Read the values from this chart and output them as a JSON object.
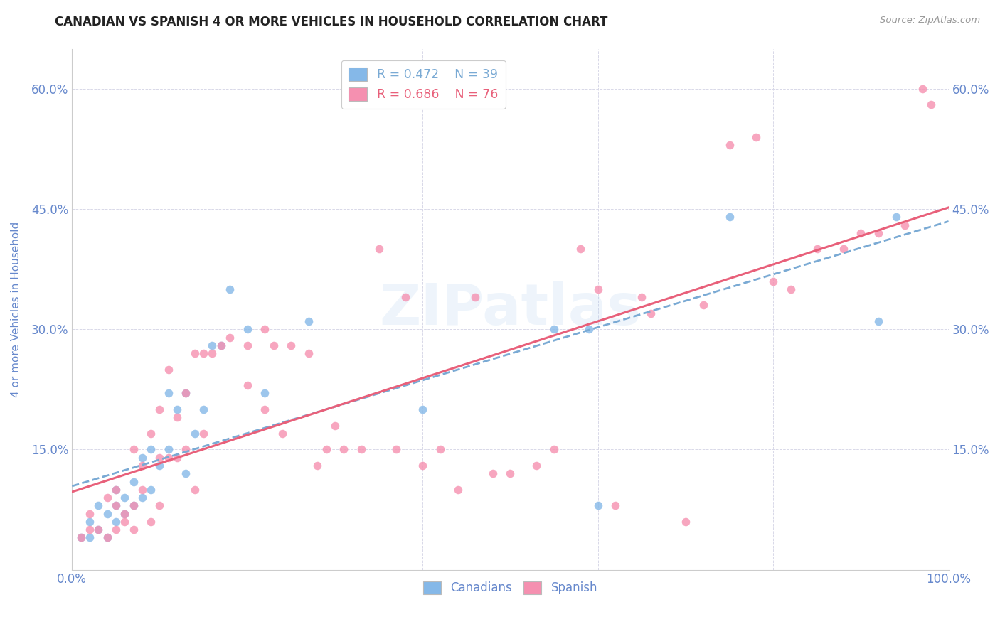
{
  "title": "CANADIAN VS SPANISH 4 OR MORE VEHICLES IN HOUSEHOLD CORRELATION CHART",
  "source": "Source: ZipAtlas.com",
  "ylabel": "4 or more Vehicles in Household",
  "watermark": "ZIPatlas",
  "xlim": [
    0.0,
    1.0
  ],
  "ylim": [
    0.0,
    0.65
  ],
  "xticks": [
    0.0,
    0.2,
    0.4,
    0.6,
    0.8,
    1.0
  ],
  "xticklabels": [
    "0.0%",
    "",
    "",
    "",
    "",
    "100.0%"
  ],
  "yticks": [
    0.0,
    0.15,
    0.3,
    0.45,
    0.6
  ],
  "yticklabels": [
    "",
    "15.0%",
    "30.0%",
    "45.0%",
    "60.0%"
  ],
  "legend_line1": "R = 0.472    N = 39",
  "legend_line2": "R = 0.686    N = 76",
  "canadian_color": "#85b8e8",
  "spanish_color": "#f590b0",
  "trendline_canadian_color": "#7aaad4",
  "trendline_spanish_color": "#e8607a",
  "axis_label_color": "#6688cc",
  "grid_color": "#d8d8e8",
  "title_color": "#222222",
  "background_color": "#ffffff",
  "canadians_scatter_x": [
    0.01,
    0.02,
    0.02,
    0.03,
    0.03,
    0.04,
    0.04,
    0.05,
    0.05,
    0.05,
    0.06,
    0.06,
    0.07,
    0.07,
    0.08,
    0.08,
    0.09,
    0.09,
    0.1,
    0.11,
    0.11,
    0.12,
    0.13,
    0.13,
    0.14,
    0.15,
    0.16,
    0.17,
    0.18,
    0.2,
    0.22,
    0.27,
    0.4,
    0.55,
    0.59,
    0.6,
    0.75,
    0.92,
    0.94
  ],
  "canadians_scatter_y": [
    0.04,
    0.04,
    0.06,
    0.05,
    0.08,
    0.04,
    0.07,
    0.06,
    0.08,
    0.1,
    0.07,
    0.09,
    0.08,
    0.11,
    0.09,
    0.14,
    0.1,
    0.15,
    0.13,
    0.15,
    0.22,
    0.2,
    0.22,
    0.12,
    0.17,
    0.2,
    0.28,
    0.28,
    0.35,
    0.3,
    0.22,
    0.31,
    0.2,
    0.3,
    0.3,
    0.08,
    0.44,
    0.31,
    0.44
  ],
  "spanish_scatter_x": [
    0.01,
    0.02,
    0.02,
    0.03,
    0.04,
    0.04,
    0.05,
    0.05,
    0.05,
    0.06,
    0.06,
    0.07,
    0.07,
    0.07,
    0.08,
    0.08,
    0.09,
    0.09,
    0.1,
    0.1,
    0.1,
    0.11,
    0.11,
    0.12,
    0.12,
    0.13,
    0.13,
    0.14,
    0.14,
    0.15,
    0.15,
    0.16,
    0.17,
    0.18,
    0.2,
    0.2,
    0.22,
    0.22,
    0.23,
    0.24,
    0.25,
    0.27,
    0.28,
    0.29,
    0.3,
    0.31,
    0.33,
    0.35,
    0.37,
    0.38,
    0.4,
    0.42,
    0.44,
    0.46,
    0.48,
    0.5,
    0.53,
    0.55,
    0.58,
    0.6,
    0.62,
    0.65,
    0.66,
    0.7,
    0.72,
    0.75,
    0.78,
    0.8,
    0.82,
    0.85,
    0.88,
    0.9,
    0.92,
    0.95,
    0.97,
    0.98
  ],
  "spanish_scatter_y": [
    0.04,
    0.05,
    0.07,
    0.05,
    0.04,
    0.09,
    0.05,
    0.08,
    0.1,
    0.06,
    0.07,
    0.05,
    0.08,
    0.15,
    0.1,
    0.13,
    0.06,
    0.17,
    0.08,
    0.14,
    0.2,
    0.14,
    0.25,
    0.14,
    0.19,
    0.15,
    0.22,
    0.27,
    0.1,
    0.17,
    0.27,
    0.27,
    0.28,
    0.29,
    0.23,
    0.28,
    0.2,
    0.3,
    0.28,
    0.17,
    0.28,
    0.27,
    0.13,
    0.15,
    0.18,
    0.15,
    0.15,
    0.4,
    0.15,
    0.34,
    0.13,
    0.15,
    0.1,
    0.34,
    0.12,
    0.12,
    0.13,
    0.15,
    0.4,
    0.35,
    0.08,
    0.34,
    0.32,
    0.06,
    0.33,
    0.53,
    0.54,
    0.36,
    0.35,
    0.4,
    0.4,
    0.42,
    0.42,
    0.43,
    0.6,
    0.58
  ]
}
